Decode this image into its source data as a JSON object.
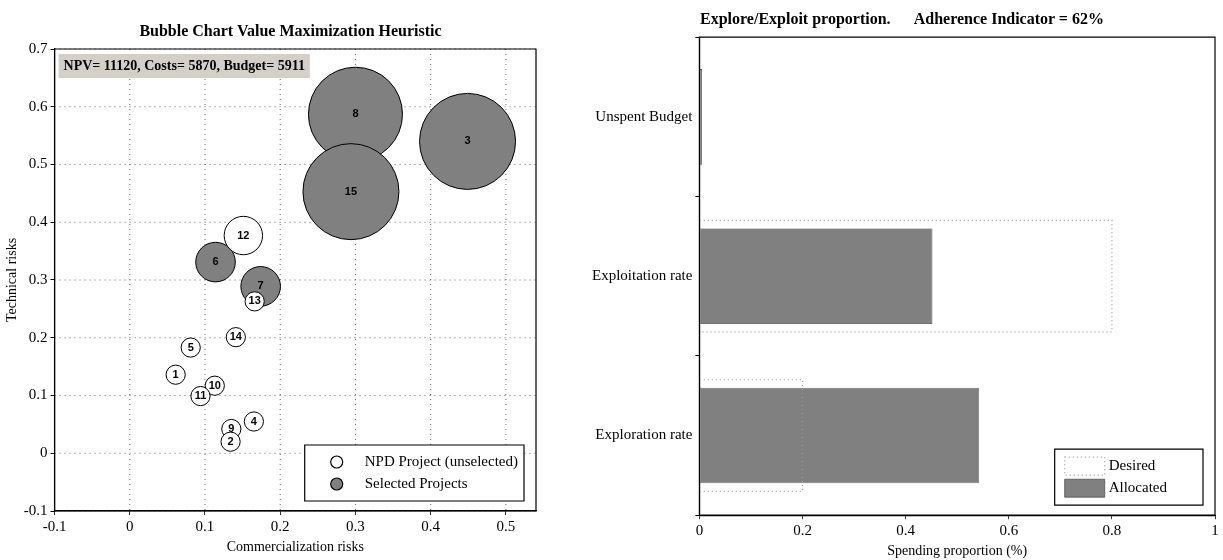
{
  "chart_data": [
    {
      "type": "bubble",
      "title": "Bubble Chart Value Maximization Heuristic",
      "xlabel": "Commercialization risks",
      "ylabel": "Technical risks",
      "xlim": [
        -0.1,
        0.54
      ],
      "xticks": [
        -0.1,
        0,
        0.1,
        0.2,
        0.3,
        0.4,
        0.5
      ],
      "ylim": [
        -0.1,
        0.7
      ],
      "yticks": [
        -0.1,
        0,
        0.1,
        0.2,
        0.3,
        0.4,
        0.5,
        0.6,
        0.7
      ],
      "grid": true,
      "legend": "bottom right",
      "series": [
        {
          "name": "NPD Project (unselected)",
          "color": "#ffffff",
          "x": [
            0.151,
            0.166,
            0.141,
            0.081,
            0.061,
            0.113,
            0.094,
            0.165,
            0.135,
            0.134
          ],
          "values": [
            0.377,
            0.263,
            0.201,
            0.183,
            0.136,
            0.117,
            0.099,
            0.055,
            0.042,
            0.02
          ],
          "sizes": [
            0.16,
            0.04,
            0.04,
            0.04,
            0.04,
            0.04,
            0.04,
            0.04,
            0.04,
            0.04
          ]
        },
        {
          "name": "Selected Projects",
          "color": "#808080",
          "x": [
            0.3,
            0.449,
            0.294,
            0.114,
            0.174
          ],
          "values": [
            0.587,
            0.54,
            0.453,
            0.331,
            0.289
          ],
          "sizes": [
            0.96,
            1,
            1,
            0.17,
            0.17
          ]
        }
      ],
      "annotations": [
        "NPV= 11120, Costs= 5870, Budget= 5911",
        {
          "text": "12",
          "x": 0.151,
          "y": 0.377
        },
        {
          "text": "13",
          "x": 0.166,
          "y": 0.263
        },
        {
          "text": "14",
          "x": 0.141,
          "y": 0.201
        },
        {
          "text": "5",
          "x": 0.081,
          "y": 0.183
        },
        {
          "text": "1",
          "x": 0.061,
          "y": 0.136
        },
        {
          "text": "10",
          "x": 0.113,
          "y": 0.117
        },
        {
          "text": "11",
          "x": 0.094,
          "y": 0.099
        },
        {
          "text": "4",
          "x": 0.165,
          "y": 0.055
        },
        {
          "text": "9",
          "x": 0.135,
          "y": 0.042
        },
        {
          "text": "2",
          "x": 0.134,
          "y": 0.02
        },
        {
          "text": "8",
          "x": 0.3,
          "y": 0.587
        },
        {
          "text": "3",
          "x": 0.449,
          "y": 0.54
        },
        {
          "text": "15",
          "x": 0.294,
          "y": 0.453
        },
        {
          "text": "6",
          "x": 0.114,
          "y": 0.331
        },
        {
          "text": "7",
          "x": 0.174,
          "y": 0.289
        }
      ]
    },
    {
      "type": "bar",
      "orientation": "horizontal",
      "title": "Explore/Exploit proportion.      Adherence Indicator = 62%",
      "xlabel": "Spending proportion (%)",
      "categories": [
        "Unspent Budget",
        "Exploitation rate",
        "Exploration rate"
      ],
      "xlim": [
        0,
        1
      ],
      "xticks": [
        0,
        0.2,
        0.4,
        0.6,
        0.8,
        1
      ],
      "legend": "bottom right",
      "series": [
        {
          "name": "Desired",
          "color": "#999999",
          "line_style": "dotted",
          "values": [
            0,
            0.8,
            0.2
          ]
        },
        {
          "name": "Allocated",
          "color": "#808080",
          "values": [
            0.005,
            0.452,
            0.542
          ]
        }
      ]
    }
  ]
}
